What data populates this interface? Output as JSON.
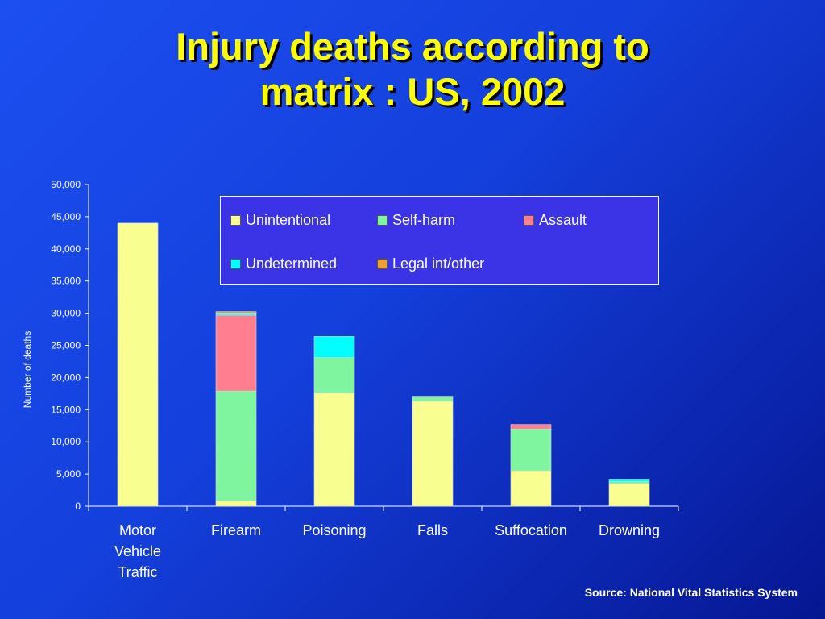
{
  "slide": {
    "title_line1": "Injury deaths according to",
    "title_line2": "matrix : US, 2002",
    "source": "Source: National Vital Statistics System"
  },
  "colors": {
    "Unintentional": "#f8ff90",
    "Self-harm": "#80f5a0",
    "Assault": "#ff7f90",
    "Undetermined": "#00ffff",
    "Legal int/other": "#f0a030"
  },
  "chart_data": {
    "type": "bar",
    "stacked": true,
    "title": "",
    "xlabel": "",
    "ylabel": "Number of deaths",
    "ylim": [
      0,
      50000
    ],
    "yticks": [
      0,
      5000,
      10000,
      15000,
      20000,
      25000,
      30000,
      35000,
      40000,
      45000,
      50000
    ],
    "ytick_labels": [
      "0",
      "5,000",
      "10,000",
      "15,000",
      "20,000",
      "25,000",
      "30,000",
      "35,000",
      "40,000",
      "45,000",
      "50,000"
    ],
    "categories": [
      [
        "Motor",
        "Vehicle",
        "Traffic"
      ],
      [
        "Firearm"
      ],
      [
        "Poisoning"
      ],
      [
        "Falls"
      ],
      [
        "Suffocation"
      ],
      [
        "Drowning"
      ]
    ],
    "legend_position": "top-right",
    "legend": [
      "Unintentional",
      "Self-harm",
      "Assault",
      "Undetermined",
      "Legal int/other"
    ],
    "series": [
      {
        "name": "Unintentional",
        "values": [
          44000,
          800,
          17600,
          16300,
          5500,
          3500
        ]
      },
      {
        "name": "Self-harm",
        "values": [
          0,
          17100,
          5500,
          700,
          6500,
          300
        ]
      },
      {
        "name": "Assault",
        "values": [
          0,
          11800,
          0,
          0,
          700,
          0
        ]
      },
      {
        "name": "Undetermined",
        "values": [
          0,
          300,
          3300,
          100,
          0,
          400
        ]
      },
      {
        "name": "Legal int/other",
        "values": [
          0,
          250,
          0,
          0,
          0,
          0
        ]
      }
    ]
  }
}
